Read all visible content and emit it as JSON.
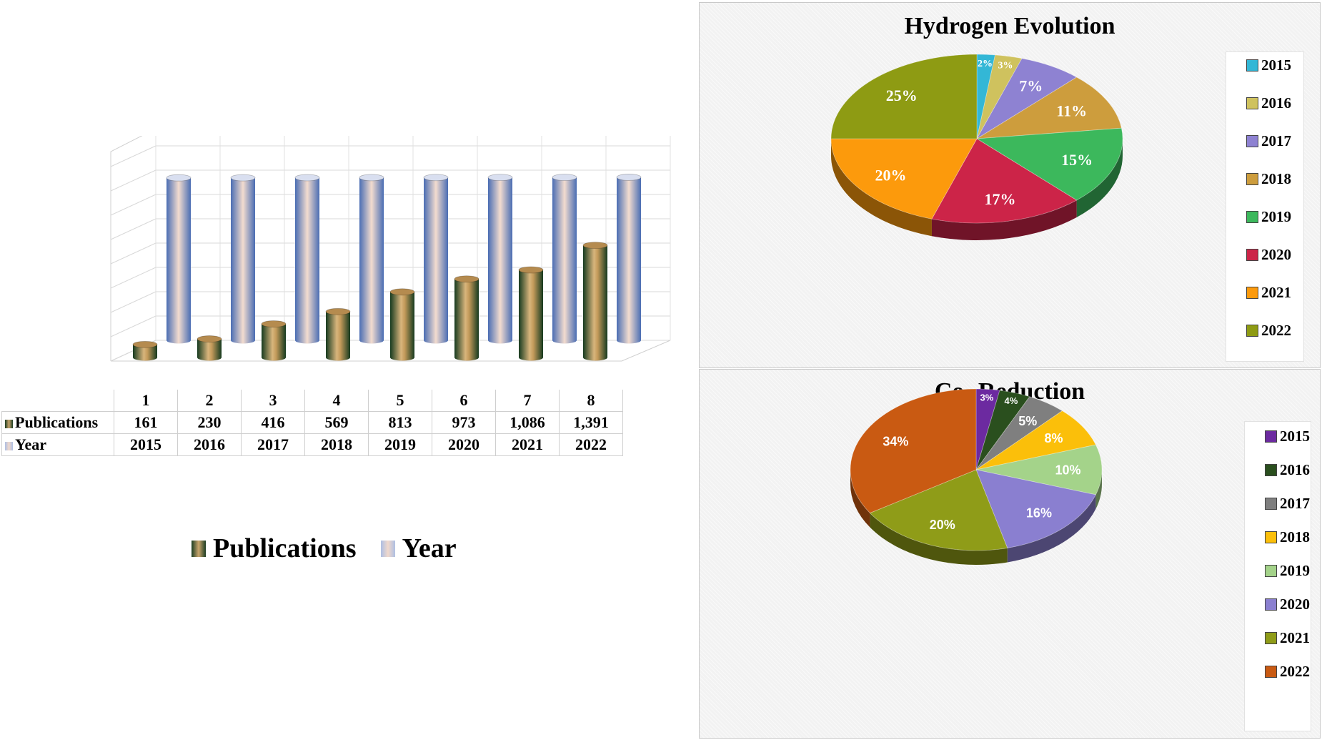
{
  "chart_data": [
    {
      "type": "bar",
      "categories": [
        "1",
        "2",
        "3",
        "4",
        "5",
        "6",
        "7",
        "8"
      ],
      "series": [
        {
          "name": "Publications",
          "values": [
            161,
            230,
            416,
            569,
            813,
            973,
            1086,
            1391
          ],
          "display": [
            "161",
            "230",
            "416",
            "569",
            "813",
            "973",
            "1,086",
            "1,391"
          ],
          "color": "#1b3d22"
        },
        {
          "name": "Year",
          "values": [
            2015,
            2016,
            2017,
            2018,
            2019,
            2020,
            2021,
            2022
          ],
          "display": [
            "2015",
            "2016",
            "2017",
            "2018",
            "2019",
            "2020",
            "2021",
            "2022"
          ],
          "color": "#4f6fb0"
        }
      ],
      "ylim": [
        0,
        2500
      ],
      "grid": true,
      "legend": "bottom",
      "data_table": true
    },
    {
      "type": "pie",
      "title": "Hydrogen Evolution",
      "labels": [
        "2015",
        "2016",
        "2017",
        "2018",
        "2019",
        "2020",
        "2021",
        "2022"
      ],
      "values": [
        2,
        3,
        7,
        11,
        15,
        17,
        20,
        25
      ],
      "data_labels": [
        "2%",
        "3%",
        "7%",
        "11%",
        "15%",
        "17%",
        "20%",
        "25%"
      ],
      "colors": [
        "#33b7d6",
        "#cfc25e",
        "#8e82d2",
        "#cd9d3d",
        "#3cb85c",
        "#cc2448",
        "#fc9a0c",
        "#8e9b13"
      ],
      "legend": "right"
    },
    {
      "type": "pie",
      "title_main": "Co",
      "title_sub": "2",
      "title_rest": " Reduction",
      "labels": [
        "2015",
        "2016",
        "2017",
        "2018",
        "2019",
        "2020",
        "2021",
        "2022"
      ],
      "values": [
        3,
        4,
        5,
        8,
        10,
        16,
        20,
        34
      ],
      "data_labels": [
        "3%",
        "4%",
        "5%",
        "8%",
        "10%",
        "16%",
        "20%",
        "34%"
      ],
      "colors": [
        "#6c2aa0",
        "#2a4f1e",
        "#7f7f7f",
        "#fbbf0a",
        "#a4d38a",
        "#8a7fd0",
        "#8f9c18",
        "#c95a12"
      ],
      "legend": "right"
    }
  ]
}
